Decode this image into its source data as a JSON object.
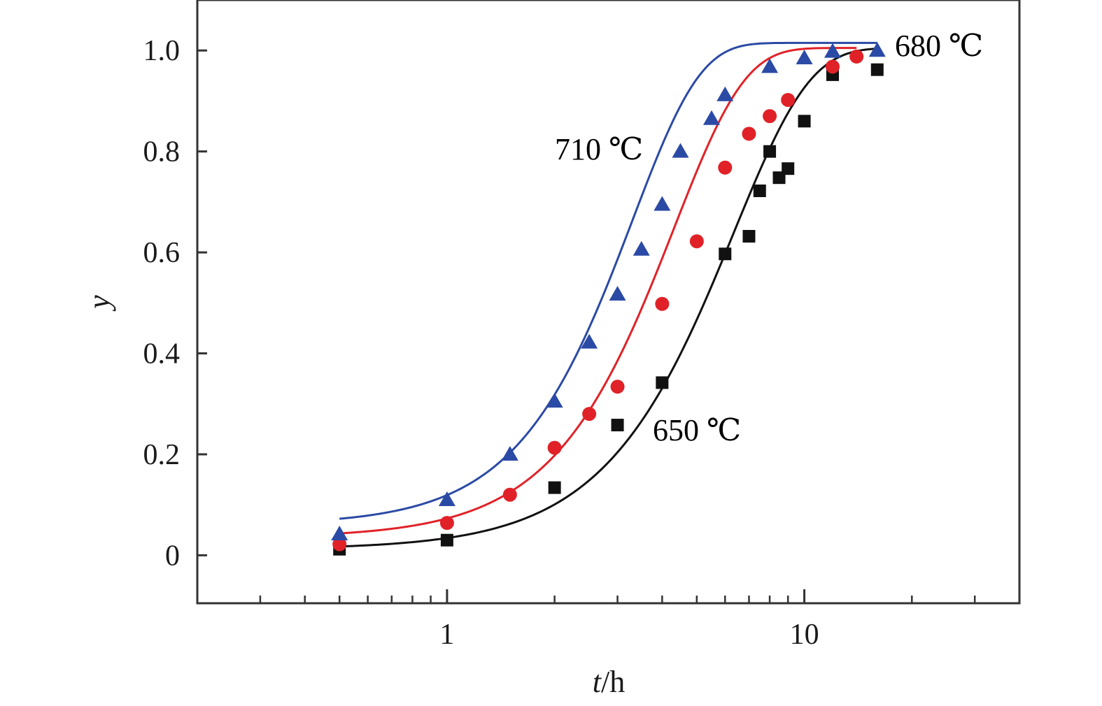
{
  "chart_data": {
    "type": "scatter",
    "title": "",
    "x_scale": "log",
    "xlim": [
      0.2,
      40
    ],
    "ylim": [
      -0.095,
      1.1
    ],
    "grid": false,
    "legend": "none",
    "xlabel": {
      "italic": "t",
      "rest": "/h"
    },
    "ylabel": "y",
    "x_ticks_major": [
      1,
      10
    ],
    "x_tick_labels": [
      "1",
      "10"
    ],
    "x_ticks_minor": [
      0.3,
      0.4,
      0.5,
      0.6,
      0.7,
      0.8,
      0.9,
      2,
      3,
      4,
      5,
      6,
      7,
      8,
      9,
      20,
      30
    ],
    "y_ticks": [
      0,
      0.2,
      0.4,
      0.6,
      0.8,
      1.0
    ],
    "y_tick_labels": [
      "0",
      "0.2",
      "0.4",
      "0.6",
      "0.8",
      "1.0"
    ],
    "series": [
      {
        "name": "650 ℃",
        "color": "#111111",
        "marker": "square",
        "fit": {
          "k": 0.0226,
          "n": 2.05,
          "y0": 0.012,
          "ymax": 1.005
        },
        "x": [
          0.5,
          1,
          2,
          3,
          4,
          6,
          7,
          7.5,
          8,
          8.5,
          9,
          10,
          12,
          16
        ],
        "y": [
          0.012,
          0.03,
          0.134,
          0.258,
          0.342,
          0.597,
          0.632,
          0.722,
          0.8,
          0.748,
          0.766,
          0.86,
          0.952,
          0.962
        ]
      },
      {
        "name": "680 ℃",
        "color": "#e02228",
        "marker": "circle",
        "fit": {
          "k": 0.04,
          "n": 2.2,
          "y0": 0.035,
          "ymax": 1.005
        },
        "x": [
          0.5,
          1,
          1.5,
          2,
          2.5,
          3,
          4,
          5,
          6,
          7,
          8,
          9,
          12,
          14
        ],
        "y": [
          0.022,
          0.064,
          0.12,
          0.213,
          0.28,
          0.334,
          0.498,
          0.622,
          0.768,
          0.835,
          0.87,
          0.902,
          0.968,
          0.988
        ]
      },
      {
        "name": "710 ℃",
        "color": "#2b4aa5",
        "marker": "triangle",
        "fit": {
          "k": 0.064,
          "n": 2.3,
          "y0": 0.06,
          "ymax": 1.015
        },
        "x": [
          0.5,
          1,
          1.5,
          2,
          2.5,
          3,
          3.5,
          4,
          4.5,
          5.5,
          6,
          8,
          10,
          12,
          16
        ],
        "y": [
          0.042,
          0.11,
          0.2,
          0.305,
          0.422,
          0.517,
          0.606,
          0.695,
          0.8,
          0.865,
          0.912,
          0.968,
          0.985,
          0.998,
          1.0
        ]
      }
    ]
  }
}
